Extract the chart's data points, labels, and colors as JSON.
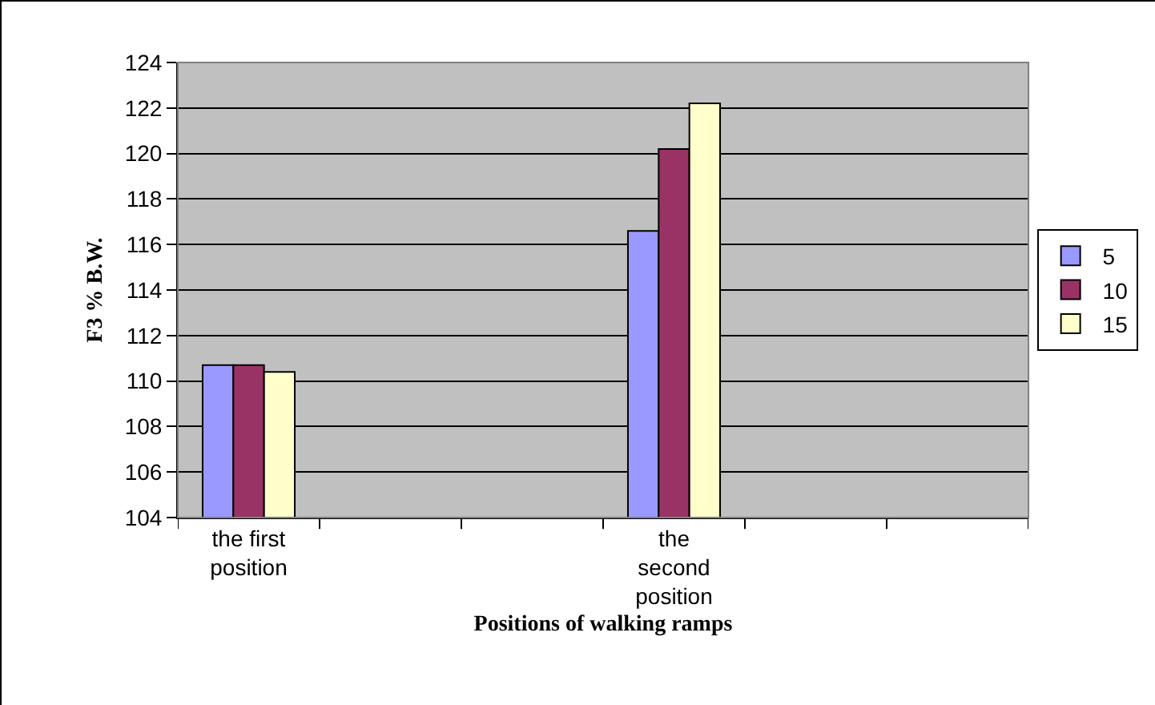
{
  "chart_data": {
    "type": "bar",
    "xlabel": "Positions of walking ramps",
    "ylabel": "F3 % B.W.",
    "categories": [
      "the first position",
      null,
      null,
      "the second position",
      null,
      null
    ],
    "series": [
      {
        "name": "5",
        "color": "#9999ff",
        "values": [
          110.7,
          null,
          null,
          116.6,
          null,
          null
        ]
      },
      {
        "name": "10",
        "color": "#993366",
        "values": [
          110.7,
          null,
          null,
          120.2,
          null,
          null
        ]
      },
      {
        "name": "15",
        "color": "#ffffcc",
        "values": [
          110.4,
          null,
          null,
          122.2,
          null,
          null
        ]
      }
    ],
    "ylim": [
      104,
      124
    ],
    "yticks": [
      104,
      106,
      108,
      110,
      112,
      114,
      116,
      118,
      120,
      122,
      124
    ],
    "grid": "y",
    "legend": "right"
  }
}
